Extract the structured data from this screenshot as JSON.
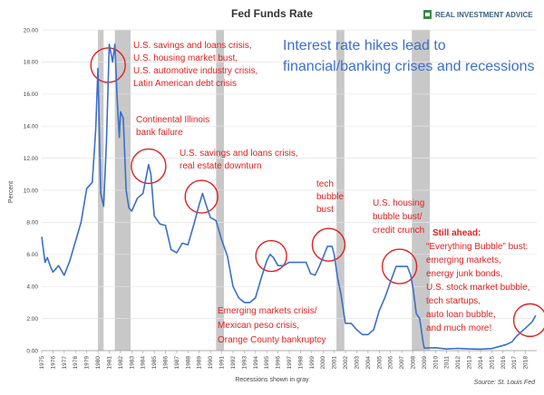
{
  "chart_data": {
    "type": "line",
    "title": "Fed Funds Rate",
    "ylabel": "Percent",
    "footer_left": "Recessions shown in gray",
    "source": "Source: St. Louis Fed",
    "logo": "REAL INVESTMENT ADVICE",
    "headline": [
      "Interest rate hikes lead to",
      "financial/banking crises and recessions"
    ],
    "ylim": [
      0,
      20
    ],
    "xlim": [
      1975,
      2019
    ],
    "y_ticks": [
      "0.00",
      "2.00",
      "4.00",
      "6.00",
      "8.00",
      "10.00",
      "12.00",
      "14.00",
      "16.00",
      "18.00",
      "20.00"
    ],
    "x_ticks": [
      "1975",
      "1976",
      "1977",
      "1978",
      "1979",
      "1980",
      "1981",
      "1982",
      "1983",
      "1984",
      "1985",
      "1986",
      "1987",
      "1988",
      "1989",
      "1990",
      "1991",
      "1992",
      "1993",
      "1994",
      "1995",
      "1996",
      "1997",
      "1998",
      "1999",
      "2000",
      "2001",
      "2002",
      "2003",
      "2004",
      "2005",
      "2006",
      "2007",
      "2008",
      "2009",
      "2010",
      "2011",
      "2012",
      "2013",
      "2014",
      "2015",
      "2016",
      "2017",
      "2018"
    ],
    "grid": true,
    "colors": {
      "line": "#3b6fc8",
      "recession": "#c8c8c8",
      "annotation": "#e02020",
      "headline": "#3d6fcf"
    },
    "recessions": [
      [
        1980.0,
        1980.5
      ],
      [
        1981.5,
        1982.9
      ],
      [
        1990.5,
        1991.2
      ],
      [
        2001.2,
        2001.9
      ],
      [
        2007.9,
        2009.5
      ]
    ],
    "series": [
      {
        "x": [
          1975.0,
          1975.3,
          1975.5,
          1975.8,
          1976.0,
          1976.5,
          1977.0,
          1977.5,
          1978.0,
          1978.5,
          1979.0,
          1979.5,
          1979.8,
          1980.0,
          1980.25,
          1980.5,
          1980.75,
          1981.0,
          1981.3,
          1981.5,
          1981.7,
          1981.9,
          1982.0,
          1982.25,
          1982.5,
          1982.75,
          1983.0,
          1983.5,
          1984.0,
          1984.5,
          1984.7,
          1985.0,
          1985.5,
          1986.0,
          1986.5,
          1987.0,
          1987.5,
          1988.0,
          1988.5,
          1989.0,
          1989.3,
          1989.6,
          1990.0,
          1990.5,
          1991.0,
          1991.5,
          1992.0,
          1992.5,
          1993.0,
          1993.5,
          1994.0,
          1994.5,
          1995.0,
          1995.3,
          1995.6,
          1996.0,
          1996.5,
          1997.0,
          1997.5,
          1998.0,
          1998.5,
          1998.9,
          1999.3,
          1999.7,
          2000.0,
          2000.4,
          2000.8,
          2001.0,
          2001.3,
          2001.6,
          2001.9,
          2002.0,
          2002.5,
          2003.0,
          2003.5,
          2004.0,
          2004.5,
          2005.0,
          2005.5,
          2006.0,
          2006.5,
          2007.0,
          2007.5,
          2007.8,
          2008.0,
          2008.3,
          2008.6,
          2008.9,
          2009.0,
          2010.0,
          2011.0,
          2012.0,
          2013.0,
          2014.0,
          2015.0,
          2015.9,
          2016.3,
          2016.8,
          2017.2,
          2017.6,
          2018.0,
          2018.3,
          2018.6,
          2018.9
        ],
        "y": [
          7.1,
          5.5,
          5.8,
          5.2,
          4.9,
          5.3,
          4.7,
          5.6,
          6.8,
          8.0,
          10.1,
          10.5,
          13.8,
          17.6,
          9.8,
          9.0,
          13.0,
          19.1,
          18.0,
          19.1,
          15.8,
          13.3,
          14.9,
          14.5,
          10.0,
          8.9,
          8.7,
          9.5,
          9.8,
          11.6,
          11.0,
          8.4,
          7.9,
          7.8,
          6.3,
          6.1,
          6.7,
          6.6,
          7.8,
          9.1,
          9.8,
          9.1,
          8.3,
          8.1,
          6.9,
          5.9,
          4.0,
          3.3,
          3.0,
          3.0,
          3.3,
          4.5,
          5.6,
          6.0,
          5.8,
          5.3,
          5.3,
          5.5,
          5.5,
          5.5,
          5.5,
          4.8,
          4.7,
          5.3,
          5.8,
          6.5,
          6.5,
          6.0,
          4.5,
          3.5,
          2.1,
          1.7,
          1.7,
          1.3,
          1.0,
          1.0,
          1.3,
          2.5,
          3.3,
          4.3,
          5.25,
          5.25,
          5.25,
          4.7,
          3.9,
          2.3,
          2.0,
          0.5,
          0.16,
          0.18,
          0.1,
          0.14,
          0.11,
          0.09,
          0.13,
          0.3,
          0.38,
          0.55,
          0.9,
          1.15,
          1.4,
          1.6,
          1.8,
          2.2
        ]
      }
    ]
  },
  "annotations": {
    "a1980": [
      "U.S. savings and loans crisis,",
      "U.S. housing market bust,",
      "U.S. automotive industry crisis,",
      "Latin American debt crisis"
    ],
    "a1984": [
      "Continental Illinois",
      "bank failure"
    ],
    "a1989": [
      "U.S. savings and loans crisis,",
      "real estate downturn"
    ],
    "a1995": [
      "Emerging markets crisis/",
      "Mexican peso crisis,",
      "Orange County bankruptcy"
    ],
    "a2000": [
      "tech",
      "bubble",
      "bust"
    ],
    "a2007": [
      "U.S. housing",
      "bubble bust/",
      "credit crunch"
    ],
    "ahead": [
      "Still ahead:",
      "“Everything Bubble” bust:",
      "emerging markets,",
      "energy junk bonds,",
      "U.S. stock market bubble,",
      "tech startups,",
      "auto loan bubble,",
      "and much more!"
    ]
  }
}
